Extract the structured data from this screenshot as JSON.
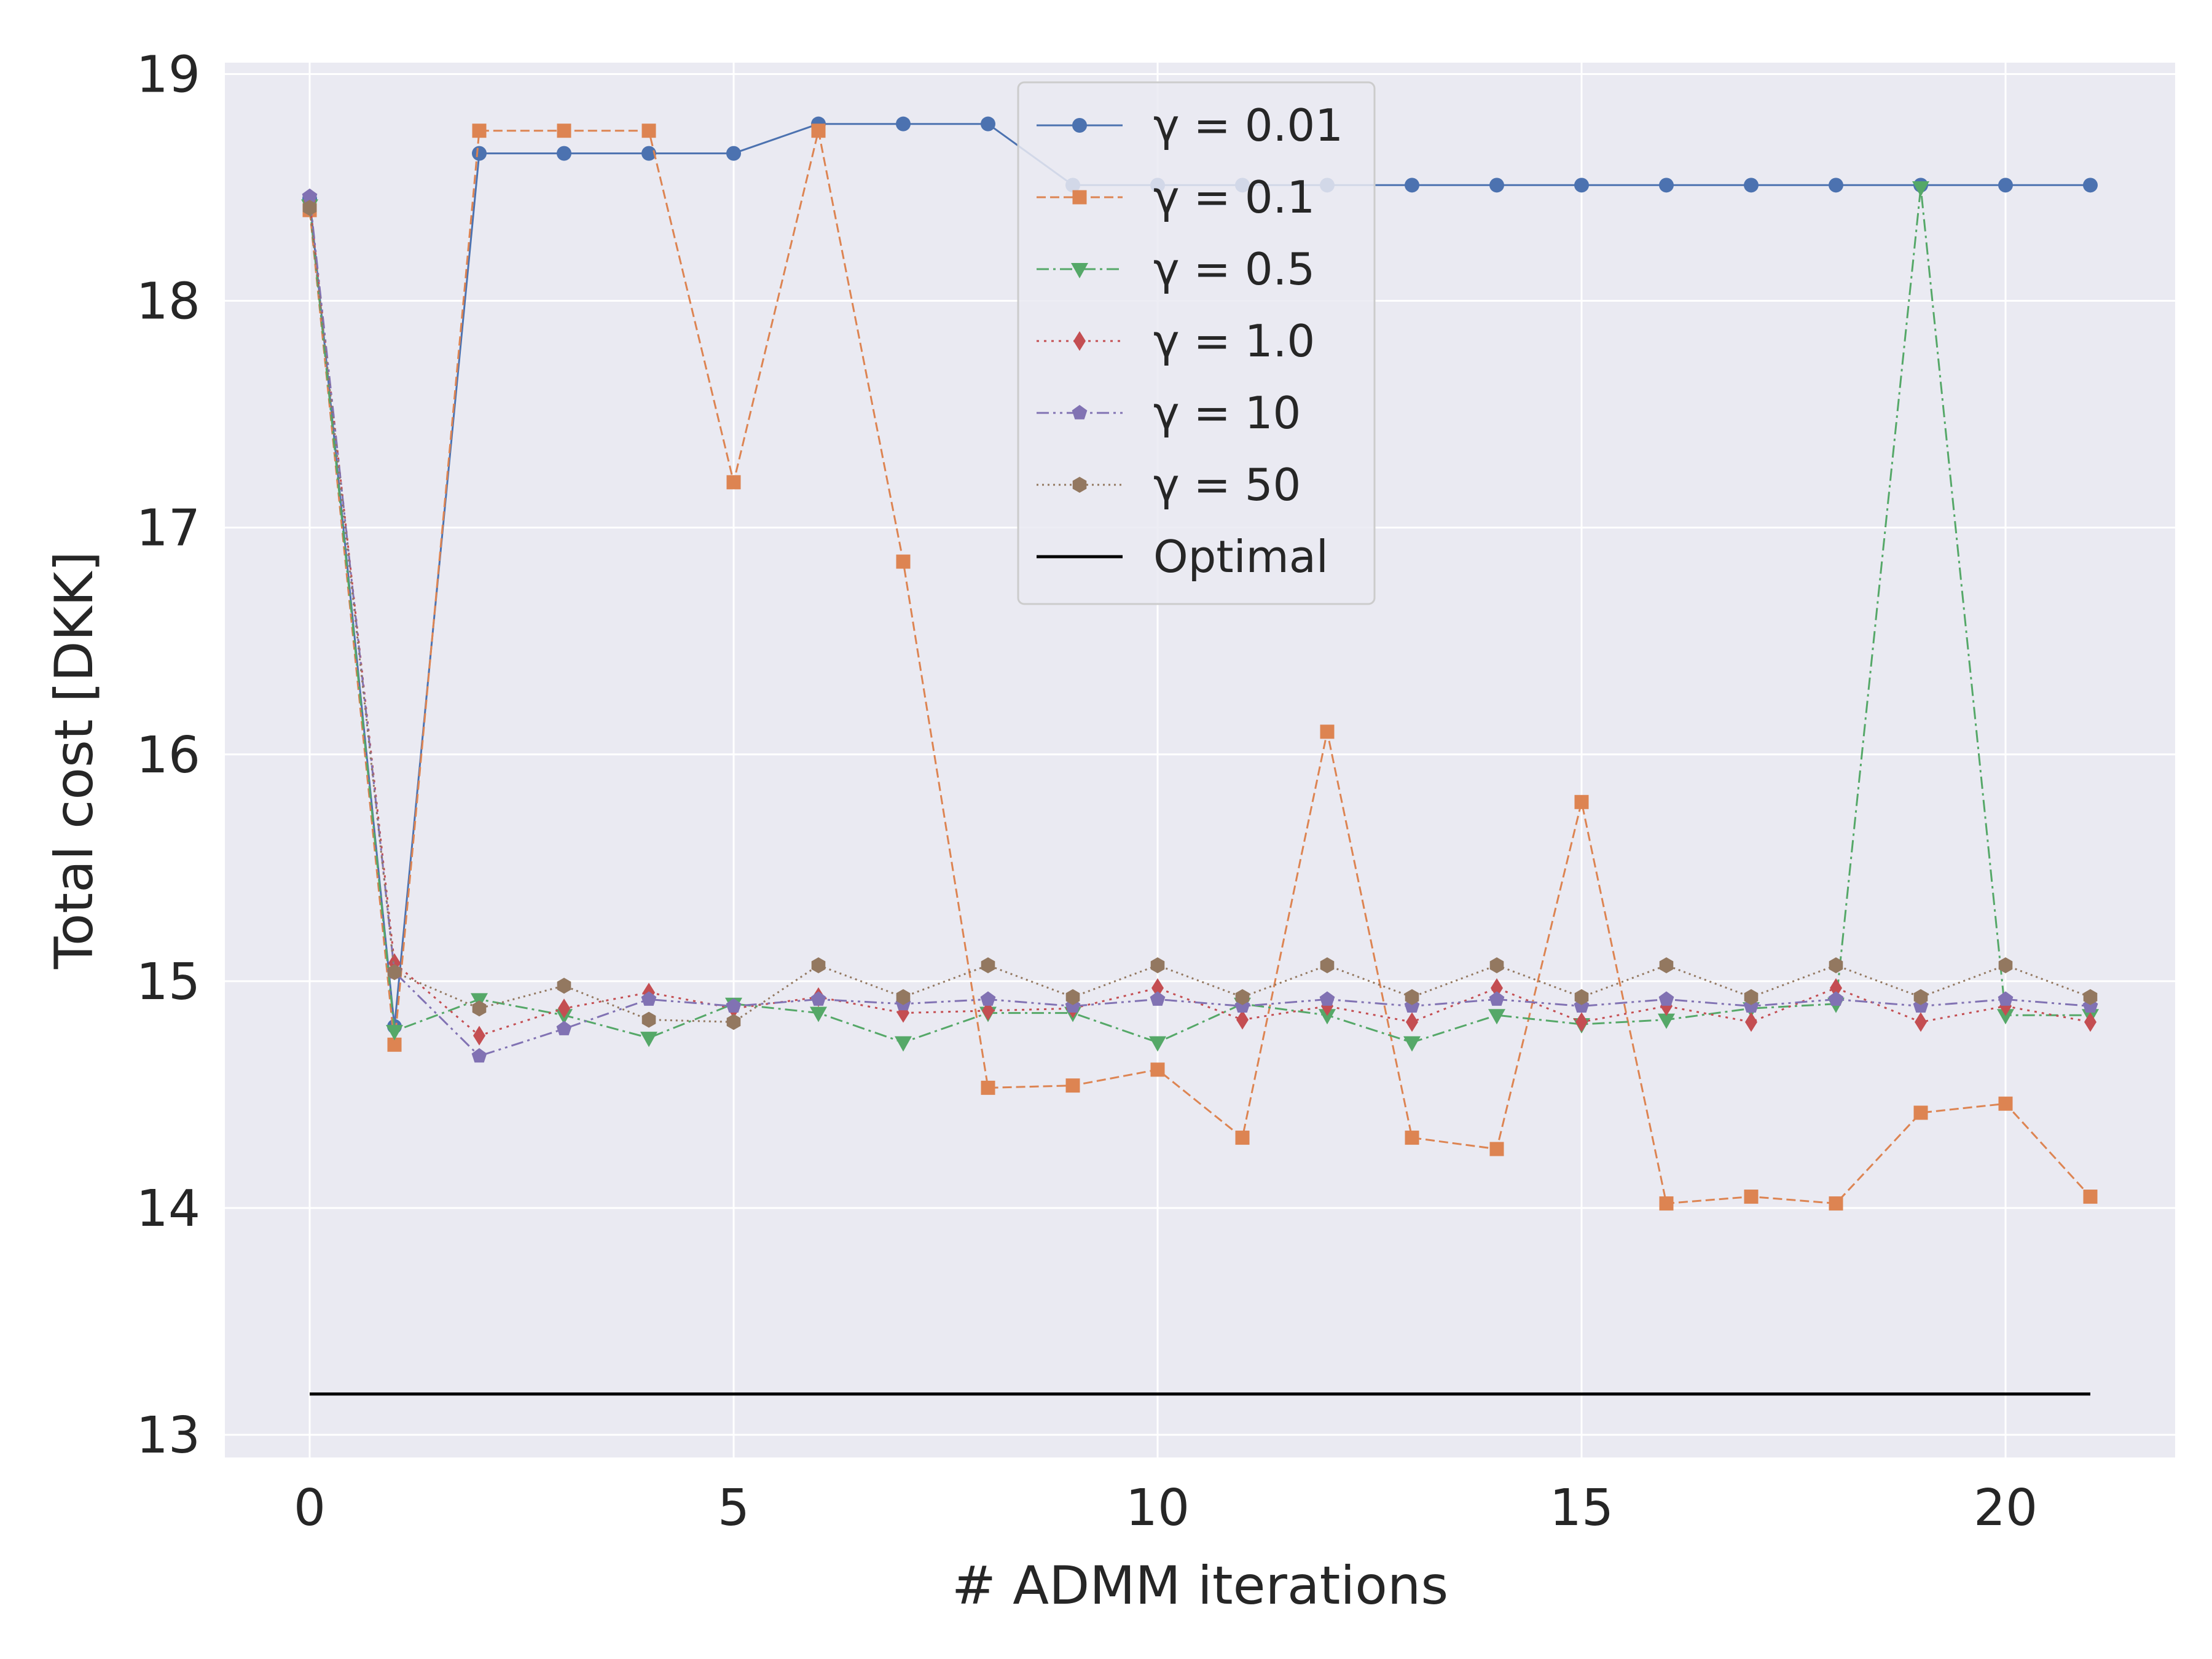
{
  "chart_data": {
    "type": "line",
    "title": "",
    "xlabel": "# ADMM iterations",
    "ylabel": "Total cost [DKK]",
    "xlim": [
      -1,
      22
    ],
    "ylim": [
      12.9,
      19.05
    ],
    "xticks": [
      0,
      5,
      10,
      15,
      20
    ],
    "yticks": [
      13,
      14,
      15,
      16,
      17,
      18,
      19
    ],
    "grid": true,
    "legend_position": "top-center",
    "x": [
      0,
      1,
      2,
      3,
      4,
      5,
      6,
      7,
      8,
      9,
      10,
      11,
      12,
      13,
      14,
      15,
      16,
      17,
      18,
      19,
      20,
      21
    ],
    "series": [
      {
        "name": "γ = 0.01",
        "color": "#4c72b0",
        "marker": "circle",
        "linestyle": "solid",
        "values": [
          18.45,
          14.8,
          18.65,
          18.65,
          18.65,
          18.65,
          18.78,
          18.78,
          18.78,
          18.51,
          18.51,
          18.51,
          18.51,
          18.51,
          18.51,
          18.51,
          18.51,
          18.51,
          18.51,
          18.51,
          18.51,
          18.51
        ]
      },
      {
        "name": "γ = 0.1",
        "color": "#dd8452",
        "marker": "square",
        "linestyle": "dashed",
        "values": [
          18.4,
          14.72,
          18.75,
          18.75,
          18.75,
          17.2,
          18.75,
          16.85,
          14.53,
          14.54,
          14.61,
          14.31,
          16.1,
          14.31,
          14.26,
          15.79,
          14.02,
          14.05,
          14.02,
          14.42,
          14.46,
          14.05
        ]
      },
      {
        "name": "γ = 0.5",
        "color": "#55a868",
        "marker": "triangle-down",
        "linestyle": "dashdot",
        "values": [
          18.42,
          14.78,
          14.92,
          14.85,
          14.75,
          14.9,
          14.86,
          14.73,
          14.86,
          14.86,
          14.73,
          14.9,
          14.85,
          14.73,
          14.85,
          14.81,
          14.83,
          14.88,
          14.9,
          18.5,
          14.85,
          14.85
        ]
      },
      {
        "name": "γ = 1.0",
        "color": "#c44e52",
        "marker": "diamond",
        "linestyle": "dotted",
        "values": [
          18.44,
          15.08,
          14.76,
          14.88,
          14.95,
          14.88,
          14.93,
          14.86,
          14.87,
          14.88,
          14.97,
          14.83,
          14.89,
          14.82,
          14.97,
          14.82,
          14.89,
          14.82,
          14.97,
          14.82,
          14.89,
          14.82
        ]
      },
      {
        "name": "γ = 10",
        "color": "#8172b3",
        "marker": "pentagon",
        "linestyle": "dashdotdot",
        "values": [
          18.46,
          15.04,
          14.67,
          14.79,
          14.92,
          14.89,
          14.92,
          14.9,
          14.92,
          14.89,
          14.92,
          14.89,
          14.92,
          14.89,
          14.92,
          14.89,
          14.92,
          14.89,
          14.92,
          14.89,
          14.92,
          14.89
        ]
      },
      {
        "name": "γ = 50",
        "color": "#937860",
        "marker": "hexagon",
        "linestyle": "densedotted",
        "values": [
          18.41,
          15.04,
          14.88,
          14.98,
          14.83,
          14.82,
          15.07,
          14.93,
          15.07,
          14.93,
          15.07,
          14.93,
          15.07,
          14.93,
          15.07,
          14.93,
          15.07,
          14.93,
          15.07,
          14.93,
          15.07,
          14.93
        ]
      },
      {
        "name": "Optimal",
        "color": "#000000",
        "marker": "none",
        "linestyle": "solid",
        "values": [
          13.18,
          13.18,
          13.18,
          13.18,
          13.18,
          13.18,
          13.18,
          13.18,
          13.18,
          13.18,
          13.18,
          13.18,
          13.18,
          13.18,
          13.18,
          13.18,
          13.18,
          13.18,
          13.18,
          13.18,
          13.18,
          13.18
        ]
      }
    ]
  }
}
